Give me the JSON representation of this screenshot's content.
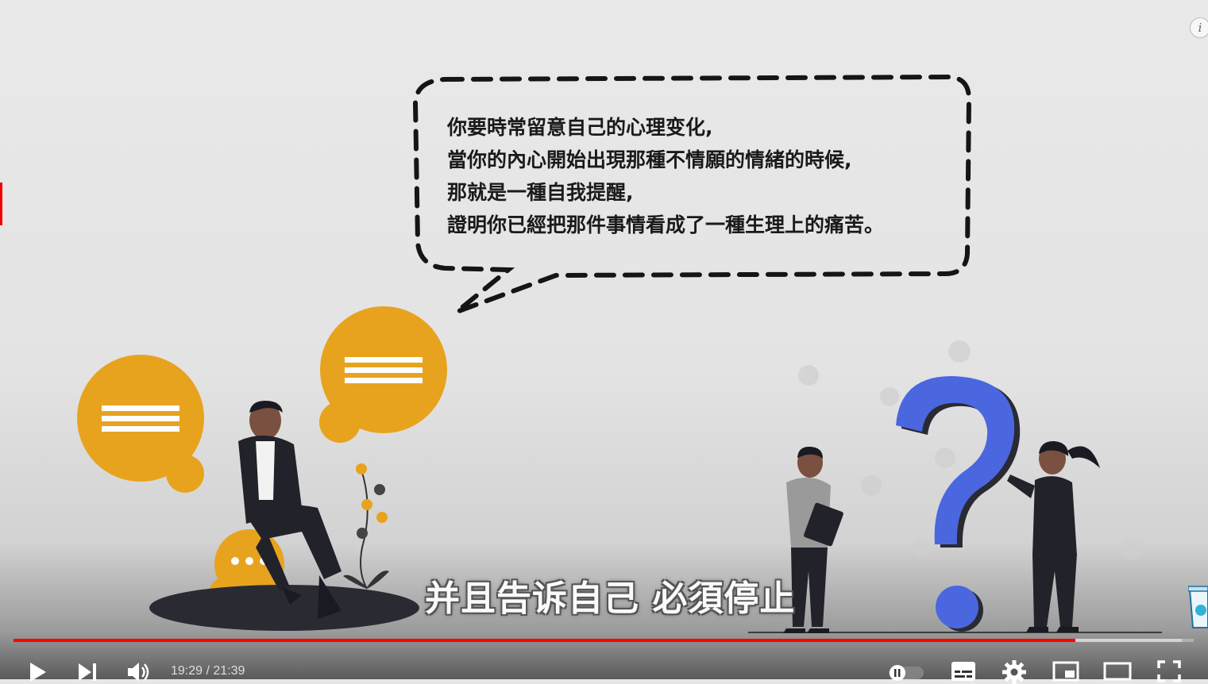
{
  "speech_bubble": {
    "lines": [
      "你要時常留意自己的心理变化,",
      "當你的內心開始出現那種不情願的情緒的時候,",
      "那就是一種自我提醒,",
      "證明你已經把那件事情看成了一種生理上的痛苦。"
    ]
  },
  "subtitle": "并且告诉自己 必須停止",
  "player": {
    "current_time": "19:29",
    "separator": " / ",
    "duration": "21:39",
    "progress_fraction": 0.9,
    "info_label": "i",
    "icons": [
      "play-icon",
      "next-icon",
      "volume-icon",
      "autoplay-toggle-icon",
      "subtitles-icon",
      "settings-icon",
      "miniplayer-icon",
      "theater-icon",
      "fullscreen-icon",
      "info-icon"
    ]
  },
  "colors": {
    "accent_orange": "#e8a31e",
    "question_blue": "#4a67e0",
    "progress_red": "#ff0000",
    "figure_dark": "#2a2a33"
  }
}
